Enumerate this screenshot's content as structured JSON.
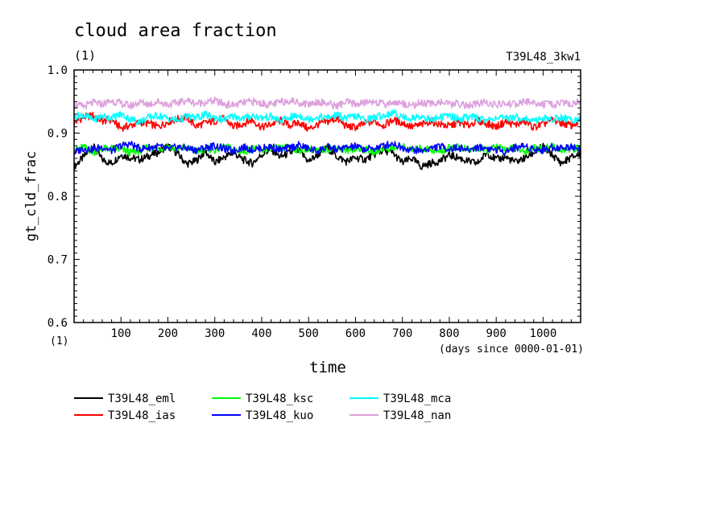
{
  "chart_data": {
    "type": "line",
    "title": "cloud area fraction",
    "units_label": "(1)",
    "run_label": "T39L48_3kw1",
    "ylabel": "gt_cld_frac",
    "xlabel": "time",
    "x_units_label": "(days since 0000-01-01)",
    "x_units_corner_label": "(1)",
    "xlim": [
      0,
      1080
    ],
    "ylim": [
      0.6,
      1.0
    ],
    "x_ticks": [
      "100",
      "200",
      "300",
      "400",
      "500",
      "600",
      "700",
      "800",
      "900",
      "1000"
    ],
    "y_ticks": [
      "0.6",
      "0.7",
      "0.8",
      "0.9",
      "1.0"
    ],
    "grid": false,
    "legend_position": "below",
    "x": [
      0,
      20,
      40,
      60,
      80,
      100,
      120,
      140,
      160,
      180,
      200,
      220,
      240,
      260,
      280,
      300,
      320,
      340,
      360,
      380,
      400,
      420,
      440,
      460,
      480,
      500,
      520,
      540,
      560,
      580,
      600,
      620,
      640,
      660,
      680,
      700,
      720,
      740,
      760,
      780,
      800,
      820,
      840,
      860,
      880,
      900,
      920,
      940,
      960,
      980,
      1000,
      1020,
      1040,
      1060,
      1080
    ],
    "series": [
      {
        "name": "T39L48_eml",
        "color": "#000000",
        "values": [
          0.847,
          0.862,
          0.88,
          0.858,
          0.852,
          0.866,
          0.861,
          0.858,
          0.864,
          0.87,
          0.88,
          0.868,
          0.851,
          0.856,
          0.871,
          0.853,
          0.862,
          0.869,
          0.858,
          0.852,
          0.866,
          0.874,
          0.862,
          0.869,
          0.872,
          0.855,
          0.866,
          0.877,
          0.863,
          0.855,
          0.861,
          0.858,
          0.866,
          0.873,
          0.868,
          0.853,
          0.86,
          0.847,
          0.852,
          0.856,
          0.865,
          0.861,
          0.855,
          0.852,
          0.869,
          0.858,
          0.862,
          0.854,
          0.86,
          0.869,
          0.879,
          0.865,
          0.852,
          0.862,
          0.867
        ]
      },
      {
        "name": "T39L48_ias",
        "color": "#ff0000",
        "values": [
          0.916,
          0.925,
          0.928,
          0.919,
          0.921,
          0.908,
          0.912,
          0.917,
          0.915,
          0.91,
          0.918,
          0.922,
          0.925,
          0.911,
          0.916,
          0.919,
          0.923,
          0.91,
          0.915,
          0.921,
          0.909,
          0.914,
          0.92,
          0.912,
          0.917,
          0.906,
          0.914,
          0.918,
          0.923,
          0.911,
          0.909,
          0.915,
          0.919,
          0.912,
          0.921,
          0.916,
          0.91,
          0.913,
          0.919,
          0.914,
          0.911,
          0.917,
          0.912,
          0.92,
          0.915,
          0.91,
          0.918,
          0.913,
          0.919,
          0.909,
          0.914,
          0.921,
          0.916,
          0.912,
          0.919
        ]
      },
      {
        "name": "T39L48_ksc",
        "color": "#00ff00",
        "values": [
          0.873,
          0.878,
          0.87,
          0.875,
          0.876,
          0.874,
          0.869,
          0.872,
          0.878,
          0.875,
          0.88,
          0.874,
          0.877,
          0.871,
          0.876,
          0.873,
          0.879,
          0.874,
          0.87,
          0.876,
          0.872,
          0.877,
          0.875,
          0.879,
          0.873,
          0.876,
          0.871,
          0.875,
          0.878,
          0.872,
          0.876,
          0.874,
          0.87,
          0.877,
          0.875,
          0.879,
          0.872,
          0.876,
          0.874,
          0.87,
          0.877,
          0.879,
          0.873,
          0.876,
          0.872,
          0.878,
          0.874,
          0.876,
          0.871,
          0.877,
          0.875,
          0.879,
          0.873,
          0.876,
          0.874
        ]
      },
      {
        "name": "T39L48_kuo",
        "color": "#0000ff",
        "values": [
          0.869,
          0.876,
          0.874,
          0.878,
          0.872,
          0.88,
          0.883,
          0.875,
          0.877,
          0.879,
          0.874,
          0.878,
          0.876,
          0.873,
          0.877,
          0.88,
          0.875,
          0.872,
          0.878,
          0.874,
          0.876,
          0.879,
          0.873,
          0.877,
          0.881,
          0.875,
          0.872,
          0.878,
          0.874,
          0.877,
          0.879,
          0.874,
          0.876,
          0.88,
          0.884,
          0.877,
          0.874,
          0.872,
          0.876,
          0.879,
          0.875,
          0.877,
          0.873,
          0.878,
          0.876,
          0.874,
          0.871,
          0.877,
          0.88,
          0.875,
          0.873,
          0.878,
          0.876,
          0.879,
          0.875
        ]
      },
      {
        "name": "T39L48_mca",
        "color": "#00ffff",
        "values": [
          0.926,
          0.929,
          0.921,
          0.927,
          0.924,
          0.93,
          0.922,
          0.918,
          0.925,
          0.928,
          0.923,
          0.92,
          0.926,
          0.924,
          0.929,
          0.925,
          0.921,
          0.927,
          0.923,
          0.928,
          0.924,
          0.926,
          0.919,
          0.925,
          0.928,
          0.922,
          0.926,
          0.924,
          0.929,
          0.923,
          0.927,
          0.921,
          0.925,
          0.928,
          0.932,
          0.926,
          0.923,
          0.927,
          0.921,
          0.925,
          0.928,
          0.922,
          0.926,
          0.924,
          0.92,
          0.925,
          0.922,
          0.926,
          0.923,
          0.919,
          0.924,
          0.921,
          0.926,
          0.92,
          0.925
        ]
      },
      {
        "name": "T39L48_nan",
        "color": "#dda0dd",
        "values": [
          0.945,
          0.942,
          0.948,
          0.946,
          0.951,
          0.947,
          0.943,
          0.949,
          0.946,
          0.95,
          0.945,
          0.948,
          0.952,
          0.947,
          0.949,
          0.951,
          0.946,
          0.944,
          0.948,
          0.95,
          0.947,
          0.945,
          0.949,
          0.952,
          0.948,
          0.946,
          0.95,
          0.947,
          0.943,
          0.949,
          0.946,
          0.948,
          0.951,
          0.945,
          0.949,
          0.947,
          0.944,
          0.948,
          0.946,
          0.95,
          0.945,
          0.947,
          0.943,
          0.946,
          0.949,
          0.944,
          0.947,
          0.945,
          0.95,
          0.948,
          0.946,
          0.944,
          0.949,
          0.945,
          0.951
        ]
      }
    ]
  }
}
